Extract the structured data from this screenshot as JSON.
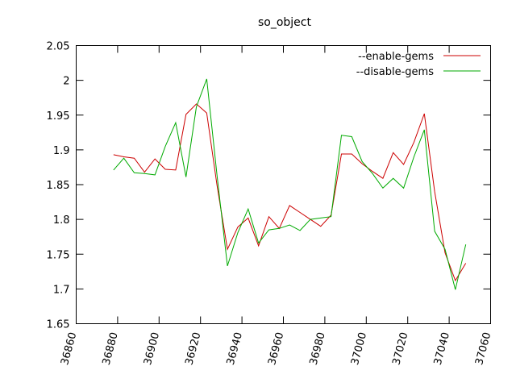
{
  "chart_data": {
    "type": "line",
    "title": "so_object",
    "xlabel": "",
    "ylabel": "",
    "xlim": [
      36860,
      37060
    ],
    "ylim": [
      1.65,
      2.05
    ],
    "xticks": [
      "36860",
      "36880",
      "36900",
      "36920",
      "36940",
      "36960",
      "36980",
      "37000",
      "37020",
      "37040",
      "37060"
    ],
    "yticks": [
      "1.65",
      "1.7",
      "1.75",
      "1.8",
      "1.85",
      "1.9",
      "1.95",
      "2",
      "2.05"
    ],
    "grid": false,
    "legend": "top-right",
    "x": [
      36878,
      36883,
      36888,
      36893,
      36898,
      36903,
      36908,
      36913,
      36918,
      36923,
      36928,
      36933,
      36938,
      36943,
      36948,
      36953,
      36958,
      36963,
      36968,
      36973,
      36978,
      36983,
      36988,
      36993,
      36998,
      37003,
      37008,
      37013,
      37018,
      37023,
      37028,
      37033,
      37038,
      37043,
      37048
    ],
    "series": [
      {
        "name": "--enable-gems",
        "color": "#cc0000",
        "values": [
          1.893,
          1.89,
          1.888,
          1.868,
          1.887,
          1.872,
          1.871,
          1.951,
          1.966,
          1.953,
          1.848,
          1.757,
          1.789,
          1.802,
          1.762,
          1.804,
          1.787,
          1.82,
          1.81,
          1.8,
          1.79,
          1.806,
          1.894,
          1.894,
          1.88,
          1.869,
          1.859,
          1.896,
          1.879,
          1.911,
          1.952,
          1.84,
          1.752,
          1.712,
          1.737
        ]
      },
      {
        "name": "--disable-gems",
        "color": "#00aa00",
        "values": [
          1.871,
          1.888,
          1.867,
          1.866,
          1.864,
          1.905,
          1.939,
          1.861,
          1.962,
          2.002,
          1.862,
          1.733,
          1.781,
          1.815,
          1.766,
          1.785,
          1.787,
          1.792,
          1.784,
          1.8,
          1.802,
          1.804,
          1.921,
          1.919,
          1.883,
          1.866,
          1.845,
          1.859,
          1.845,
          1.89,
          1.929,
          1.783,
          1.757,
          1.699,
          1.764
        ]
      }
    ]
  }
}
